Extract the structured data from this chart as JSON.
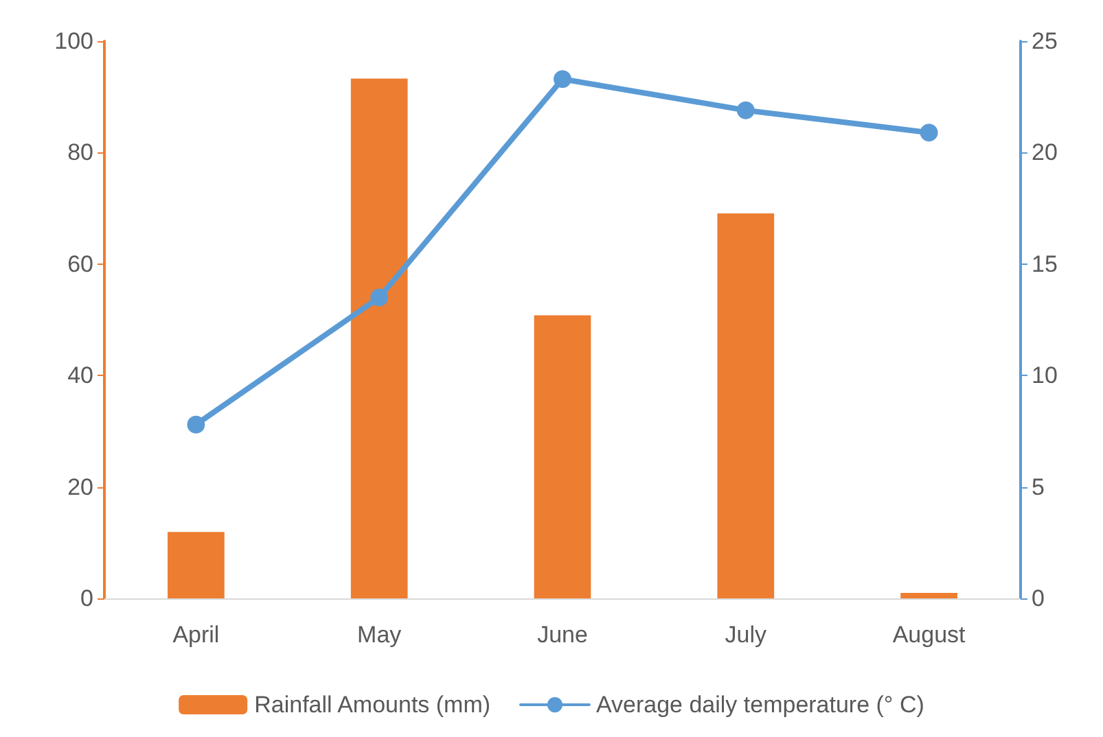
{
  "chart_data": {
    "type": "bar",
    "categories": [
      "April",
      "May",
      "June",
      "July",
      "August"
    ],
    "series": [
      {
        "name": "Rainfall Amounts (mm)",
        "color": "#ed7d31",
        "values": [
          11.9,
          93.3,
          50.8,
          69.1,
          1
        ]
      },
      {
        "name": "Average daily temperature (° C)",
        "type": "line",
        "axis": "y2",
        "color": "#5b9bd5",
        "values": [
          7.8,
          13.5,
          23.3,
          21.9,
          20.9
        ]
      }
    ],
    "ylim": [
      0,
      100
    ],
    "yticks": [
      0,
      20,
      40,
      60,
      80,
      100
    ],
    "y2lim": [
      0,
      25
    ],
    "y2ticks": [
      0,
      5,
      10,
      15,
      20,
      25
    ],
    "grid": false,
    "legend": "bottom",
    "marker": "circle",
    "line_style": "solid"
  }
}
